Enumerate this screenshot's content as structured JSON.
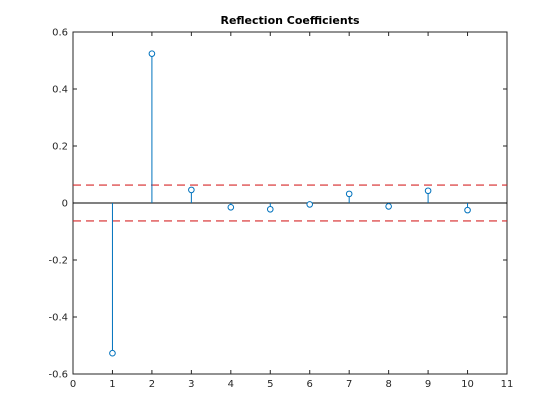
{
  "chart_data": {
    "type": "stem",
    "title": "Reflection Coefficients",
    "xlabel": "",
    "ylabel": "",
    "xlim": [
      0,
      11
    ],
    "ylim": [
      -0.6,
      0.6
    ],
    "x_ticks": [
      "0",
      "1",
      "2",
      "3",
      "4",
      "5",
      "6",
      "7",
      "8",
      "9",
      "10",
      "11"
    ],
    "y_ticks": [
      "0.6",
      "0.4",
      "0.2",
      "0",
      "-0.2",
      "-0.4",
      "-0.6"
    ],
    "x": [
      1,
      2,
      3,
      4,
      5,
      6,
      7,
      8,
      9,
      10
    ],
    "values": [
      -0.527,
      0.524,
      0.046,
      -0.015,
      -0.022,
      -0.005,
      0.032,
      -0.012,
      0.043,
      -0.025
    ],
    "confidence_bounds": [
      0.063,
      -0.063
    ],
    "grid": false,
    "colors": {
      "stem": "#0072BD",
      "bounds": "#D62728",
      "zero_line": "#000000",
      "axes": "#262626"
    }
  }
}
